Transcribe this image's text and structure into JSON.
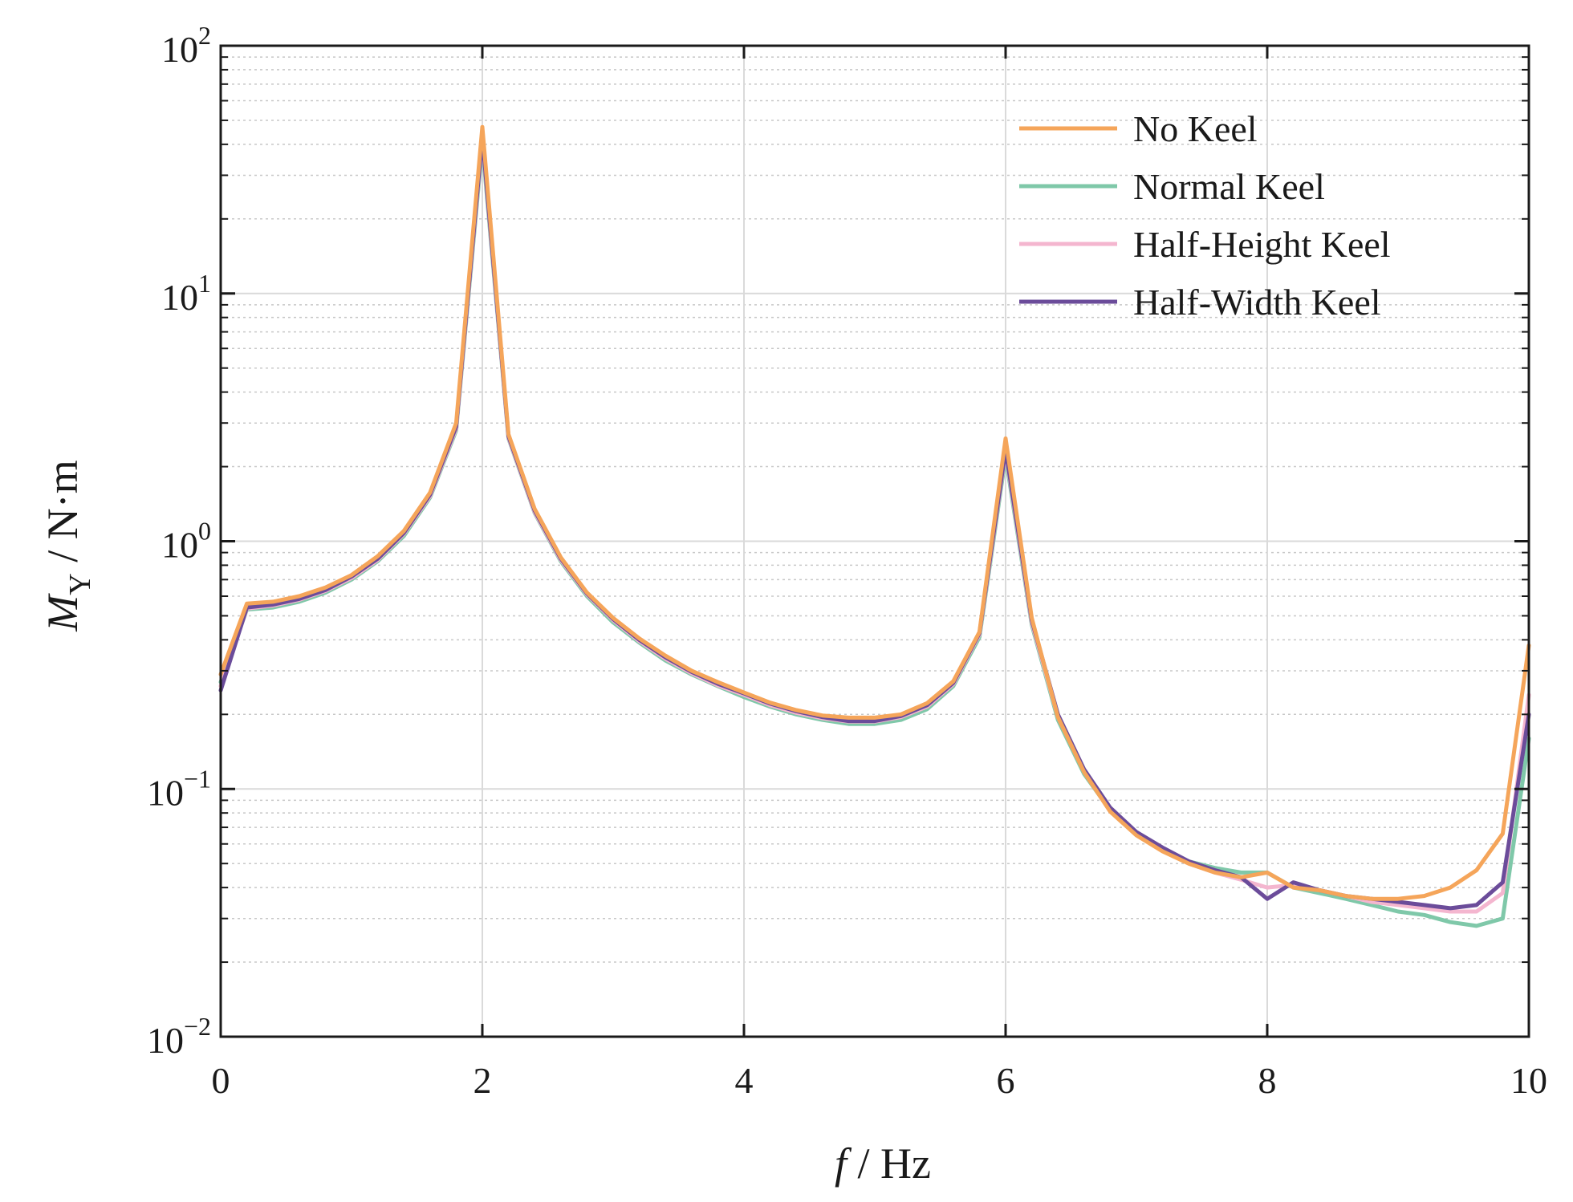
{
  "chart_data": {
    "type": "line",
    "title": "",
    "xlabel_italic": "f",
    "xlabel_rest": " / Hz",
    "ylabel_italic": "M",
    "ylabel_sub": "Y",
    "ylabel_rest": " / N·m",
    "xlim": [
      0,
      10
    ],
    "ylim": [
      0.01,
      100
    ],
    "yscale": "log",
    "grid": true,
    "legend_position": "top-right",
    "xticks": [
      {
        "value": 0,
        "label": "0"
      },
      {
        "value": 2,
        "label": "2"
      },
      {
        "value": 4,
        "label": "4"
      },
      {
        "value": 6,
        "label": "6"
      },
      {
        "value": 8,
        "label": "8"
      },
      {
        "value": 10,
        "label": "10"
      }
    ],
    "yticks": [
      {
        "value": 100,
        "base": "10",
        "exp": "2"
      },
      {
        "value": 10,
        "base": "10",
        "exp": "1"
      },
      {
        "value": 1,
        "base": "10",
        "exp": "0"
      },
      {
        "value": 0.1,
        "base": "10",
        "exp": "−1"
      },
      {
        "value": 0.01,
        "base": "10",
        "exp": "−2"
      }
    ],
    "x": [
      0,
      0.2,
      0.4,
      0.6,
      0.8,
      1.0,
      1.2,
      1.4,
      1.6,
      1.8,
      2.0,
      2.2,
      2.4,
      2.6,
      2.8,
      3.0,
      3.2,
      3.4,
      3.6,
      3.8,
      4.0,
      4.2,
      4.4,
      4.6,
      4.8,
      5.0,
      5.2,
      5.4,
      5.6,
      5.8,
      6.0,
      6.2,
      6.4,
      6.6,
      6.8,
      7.0,
      7.2,
      7.4,
      7.6,
      7.8,
      8.0,
      8.2,
      8.4,
      8.6,
      8.8,
      9.0,
      9.2,
      9.4,
      9.6,
      9.8,
      10.0
    ],
    "series": [
      {
        "name": "Normal Keel",
        "color": "#7fc8a9",
        "values": [
          0.27,
          0.53,
          0.54,
          0.57,
          0.62,
          0.7,
          0.83,
          1.05,
          1.5,
          2.8,
          40,
          2.6,
          1.3,
          0.83,
          0.6,
          0.47,
          0.39,
          0.33,
          0.29,
          0.26,
          0.235,
          0.215,
          0.2,
          0.19,
          0.183,
          0.183,
          0.19,
          0.21,
          0.26,
          0.41,
          2.2,
          0.46,
          0.19,
          0.115,
          0.082,
          0.066,
          0.057,
          0.051,
          0.048,
          0.046,
          0.046,
          0.04,
          0.038,
          0.036,
          0.034,
          0.032,
          0.031,
          0.029,
          0.028,
          0.03,
          0.16
        ]
      },
      {
        "name": "Half-Height Keel",
        "color": "#f4b6cf",
        "values": [
          0.26,
          0.535,
          0.55,
          0.58,
          0.63,
          0.71,
          0.84,
          1.07,
          1.52,
          2.85,
          42,
          2.62,
          1.31,
          0.84,
          0.61,
          0.48,
          0.395,
          0.335,
          0.293,
          0.262,
          0.24,
          0.218,
          0.203,
          0.193,
          0.187,
          0.187,
          0.195,
          0.215,
          0.265,
          0.42,
          2.3,
          0.47,
          0.195,
          0.118,
          0.083,
          0.066,
          0.057,
          0.05,
          0.046,
          0.043,
          0.04,
          0.041,
          0.039,
          0.037,
          0.035,
          0.034,
          0.033,
          0.032,
          0.032,
          0.038,
          0.24
        ]
      },
      {
        "name": "Half-Width Keel",
        "color": "#6b4c9a",
        "values": [
          0.25,
          0.54,
          0.555,
          0.585,
          0.635,
          0.72,
          0.85,
          1.08,
          1.54,
          2.9,
          43,
          2.65,
          1.33,
          0.85,
          0.615,
          0.485,
          0.4,
          0.34,
          0.297,
          0.266,
          0.243,
          0.221,
          0.206,
          0.195,
          0.188,
          0.188,
          0.197,
          0.218,
          0.268,
          0.425,
          2.35,
          0.48,
          0.2,
          0.12,
          0.084,
          0.067,
          0.058,
          0.051,
          0.047,
          0.044,
          0.036,
          0.042,
          0.039,
          0.037,
          0.036,
          0.035,
          0.034,
          0.033,
          0.034,
          0.042,
          0.2
        ]
      },
      {
        "name": "No Keel",
        "color": "#f5a55a",
        "values": [
          0.29,
          0.56,
          0.57,
          0.6,
          0.65,
          0.73,
          0.87,
          1.1,
          1.57,
          3.0,
          47,
          2.7,
          1.35,
          0.86,
          0.62,
          0.49,
          0.405,
          0.345,
          0.3,
          0.27,
          0.245,
          0.223,
          0.208,
          0.198,
          0.194,
          0.194,
          0.2,
          0.222,
          0.272,
          0.43,
          2.6,
          0.49,
          0.195,
          0.117,
          0.081,
          0.065,
          0.056,
          0.05,
          0.046,
          0.044,
          0.046,
          0.04,
          0.039,
          0.037,
          0.036,
          0.036,
          0.037,
          0.04,
          0.047,
          0.066,
          0.38
        ]
      }
    ],
    "legend_order": [
      "No Keel",
      "Normal Keel",
      "Half-Height Keel",
      "Half-Width Keel"
    ]
  }
}
